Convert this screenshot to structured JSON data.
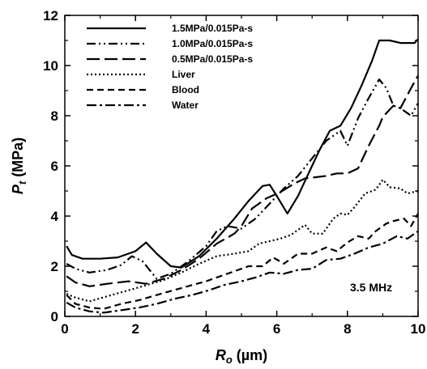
{
  "chart_data": {
    "type": "line",
    "xlabel_symbol": "R",
    "xlabel_sub": "o",
    "xlabel_unit": " (µm)",
    "ylabel_symbol": "P",
    "ylabel_sub": "t",
    "ylabel_unit": " (MPa)",
    "xlim": [
      0,
      10
    ],
    "ylim": [
      0,
      12
    ],
    "xticks": [
      "0",
      "2",
      "4",
      "6",
      "8",
      "10"
    ],
    "yticks": [
      "0",
      "2",
      "4",
      "6",
      "8",
      "10",
      "12"
    ],
    "annotation": "3.5 MHz",
    "grid": false,
    "legend_position": "top-left",
    "series": [
      {
        "name": "1.5MPa/0.015Pa-s",
        "dash": "solid",
        "color": "#000000",
        "points": [
          [
            0.05,
            2.8
          ],
          [
            0.2,
            2.45
          ],
          [
            0.5,
            2.3
          ],
          [
            1.0,
            2.3
          ],
          [
            1.5,
            2.35
          ],
          [
            2.0,
            2.6
          ],
          [
            2.3,
            2.95
          ],
          [
            2.6,
            2.5
          ],
          [
            3.0,
            2.0
          ],
          [
            3.3,
            1.95
          ],
          [
            3.8,
            2.4
          ],
          [
            4.3,
            3.1
          ],
          [
            4.8,
            3.9
          ],
          [
            5.2,
            4.6
          ],
          [
            5.6,
            5.2
          ],
          [
            5.8,
            5.25
          ],
          [
            6.0,
            4.8
          ],
          [
            6.3,
            4.1
          ],
          [
            6.6,
            4.8
          ],
          [
            6.9,
            5.7
          ],
          [
            7.2,
            6.6
          ],
          [
            7.5,
            7.4
          ],
          [
            7.8,
            7.6
          ],
          [
            8.1,
            8.3
          ],
          [
            8.4,
            9.2
          ],
          [
            8.7,
            10.2
          ],
          [
            8.9,
            11.0
          ],
          [
            9.2,
            11.0
          ],
          [
            9.5,
            10.9
          ],
          [
            9.9,
            10.9
          ],
          [
            10.0,
            11.05
          ]
        ]
      },
      {
        "name": "1.0MPa/0.015Pa-s",
        "dash": "dashdotdot",
        "color": "#000000",
        "points": [
          [
            0.05,
            2.1
          ],
          [
            0.3,
            1.9
          ],
          [
            0.7,
            1.75
          ],
          [
            1.2,
            1.85
          ],
          [
            1.6,
            2.05
          ],
          [
            1.9,
            2.4
          ],
          [
            2.2,
            2.2
          ],
          [
            2.6,
            1.5
          ],
          [
            3.0,
            1.7
          ],
          [
            3.5,
            2.2
          ],
          [
            4.0,
            2.8
          ],
          [
            4.3,
            3.4
          ],
          [
            4.6,
            3.6
          ],
          [
            5.0,
            3.5
          ],
          [
            5.4,
            3.9
          ],
          [
            5.8,
            4.5
          ],
          [
            6.2,
            5.1
          ],
          [
            6.6,
            5.6
          ],
          [
            7.0,
            6.3
          ],
          [
            7.4,
            7.0
          ],
          [
            7.8,
            7.4
          ],
          [
            8.0,
            6.8
          ],
          [
            8.3,
            7.9
          ],
          [
            8.6,
            8.7
          ],
          [
            8.9,
            9.45
          ],
          [
            9.1,
            9.1
          ],
          [
            9.3,
            8.4
          ],
          [
            9.5,
            8.3
          ],
          [
            9.8,
            8.0
          ],
          [
            10.0,
            8.5
          ]
        ]
      },
      {
        "name": "0.5MPa/0.015Pa-s",
        "dash": "longdash",
        "color": "#000000",
        "points": [
          [
            0.05,
            1.6
          ],
          [
            0.3,
            1.35
          ],
          [
            0.7,
            1.2
          ],
          [
            1.2,
            1.3
          ],
          [
            1.8,
            1.4
          ],
          [
            2.3,
            1.3
          ],
          [
            2.8,
            1.5
          ],
          [
            3.3,
            1.85
          ],
          [
            3.8,
            2.3
          ],
          [
            4.3,
            2.9
          ],
          [
            4.8,
            3.3
          ],
          [
            5.0,
            3.6
          ],
          [
            5.3,
            4.3
          ],
          [
            5.7,
            4.7
          ],
          [
            6.1,
            4.95
          ],
          [
            6.5,
            5.3
          ],
          [
            6.8,
            5.5
          ],
          [
            7.1,
            5.55
          ],
          [
            7.4,
            5.6
          ],
          [
            7.7,
            5.7
          ],
          [
            8.0,
            5.7
          ],
          [
            8.3,
            5.9
          ],
          [
            8.6,
            6.8
          ],
          [
            8.9,
            7.6
          ],
          [
            9.0,
            7.95
          ],
          [
            9.3,
            8.4
          ],
          [
            9.5,
            8.3
          ],
          [
            9.8,
            9.1
          ],
          [
            10.0,
            9.6
          ]
        ]
      },
      {
        "name": "Liver",
        "dash": "dotted",
        "color": "#000000",
        "points": [
          [
            0.05,
            0.9
          ],
          [
            0.3,
            0.75
          ],
          [
            0.7,
            0.6
          ],
          [
            1.2,
            0.8
          ],
          [
            1.7,
            1.0
          ],
          [
            2.2,
            1.2
          ],
          [
            2.8,
            1.45
          ],
          [
            3.3,
            1.75
          ],
          [
            3.8,
            2.1
          ],
          [
            4.3,
            2.4
          ],
          [
            4.8,
            2.5
          ],
          [
            5.2,
            2.6
          ],
          [
            5.5,
            2.9
          ],
          [
            5.8,
            3.0
          ],
          [
            6.1,
            3.1
          ],
          [
            6.4,
            3.25
          ],
          [
            6.8,
            3.65
          ],
          [
            7.0,
            3.3
          ],
          [
            7.3,
            3.3
          ],
          [
            7.6,
            3.9
          ],
          [
            7.8,
            4.1
          ],
          [
            8.0,
            4.05
          ],
          [
            8.2,
            4.35
          ],
          [
            8.5,
            4.9
          ],
          [
            8.8,
            5.05
          ],
          [
            9.0,
            5.45
          ],
          [
            9.2,
            5.15
          ],
          [
            9.5,
            5.1
          ],
          [
            9.7,
            4.9
          ],
          [
            10.0,
            5.0
          ]
        ]
      },
      {
        "name": "Blood",
        "dash": "dashed",
        "color": "#000000",
        "points": [
          [
            0.05,
            0.85
          ],
          [
            0.3,
            0.5
          ],
          [
            0.7,
            0.35
          ],
          [
            1.1,
            0.3
          ],
          [
            1.6,
            0.5
          ],
          [
            2.1,
            0.65
          ],
          [
            2.6,
            0.85
          ],
          [
            3.1,
            1.05
          ],
          [
            3.6,
            1.25
          ],
          [
            4.0,
            1.4
          ],
          [
            4.4,
            1.6
          ],
          [
            4.8,
            1.8
          ],
          [
            5.2,
            2.0
          ],
          [
            5.6,
            2.0
          ],
          [
            5.9,
            2.35
          ],
          [
            6.2,
            2.1
          ],
          [
            6.6,
            2.5
          ],
          [
            7.0,
            2.5
          ],
          [
            7.4,
            2.75
          ],
          [
            7.7,
            2.6
          ],
          [
            8.0,
            2.95
          ],
          [
            8.3,
            3.2
          ],
          [
            8.6,
            3.1
          ],
          [
            8.8,
            3.4
          ],
          [
            9.1,
            3.7
          ],
          [
            9.3,
            3.8
          ],
          [
            9.6,
            3.9
          ],
          [
            9.8,
            3.6
          ],
          [
            10.0,
            4.1
          ]
        ]
      },
      {
        "name": "Water",
        "dash": "dashdot",
        "color": "#000000",
        "points": [
          [
            0.05,
            0.55
          ],
          [
            0.3,
            0.35
          ],
          [
            0.7,
            0.2
          ],
          [
            1.1,
            0.15
          ],
          [
            1.6,
            0.25
          ],
          [
            2.1,
            0.35
          ],
          [
            2.6,
            0.5
          ],
          [
            3.1,
            0.7
          ],
          [
            3.6,
            0.85
          ],
          [
            4.1,
            1.05
          ],
          [
            4.5,
            1.25
          ],
          [
            5.0,
            1.4
          ],
          [
            5.4,
            1.55
          ],
          [
            5.8,
            1.75
          ],
          [
            6.2,
            1.7
          ],
          [
            6.6,
            1.85
          ],
          [
            7.0,
            1.9
          ],
          [
            7.4,
            2.25
          ],
          [
            7.8,
            2.3
          ],
          [
            8.2,
            2.5
          ],
          [
            8.6,
            2.75
          ],
          [
            9.0,
            2.9
          ],
          [
            9.4,
            3.2
          ],
          [
            9.7,
            3.1
          ],
          [
            10.0,
            3.4
          ]
        ]
      }
    ]
  }
}
